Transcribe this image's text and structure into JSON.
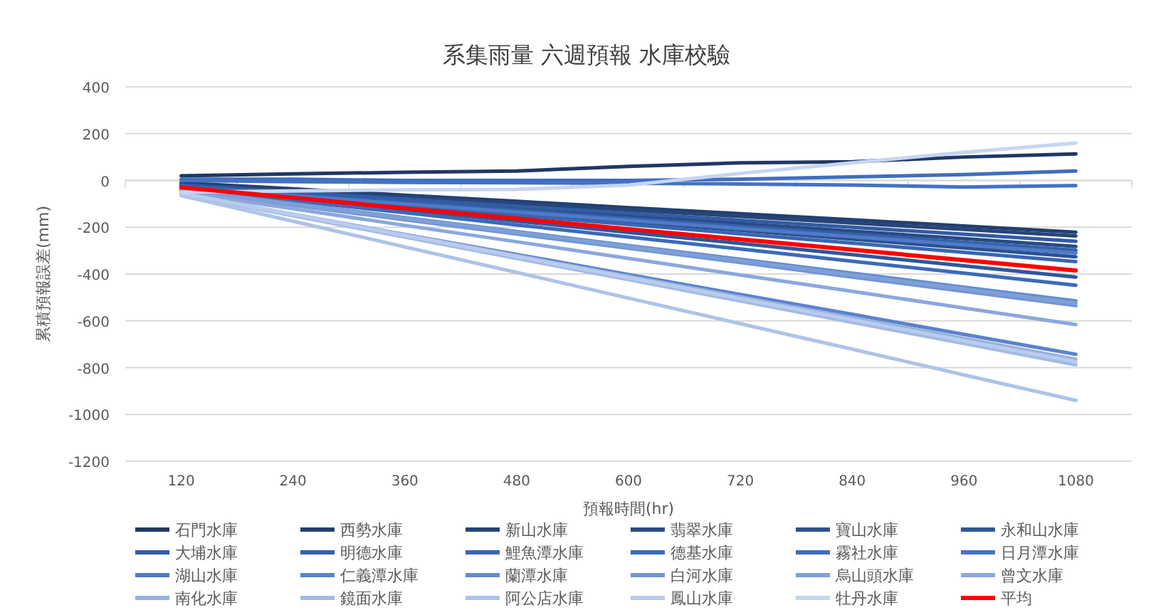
{
  "chart_data": {
    "type": "line",
    "title": "系集雨量 六週預報 水庫校驗",
    "xlabel": "預報時間(hr)",
    "ylabel": "累積預報誤差(mm)",
    "categories": [
      "120",
      "240",
      "360",
      "480",
      "600",
      "720",
      "840",
      "960",
      "1080"
    ],
    "ylim": [
      -1200,
      400
    ],
    "yticks": [
      -1200,
      -1000,
      -800,
      -600,
      -400,
      -200,
      0,
      200,
      400
    ],
    "grid": "y",
    "legend": "bottom",
    "series": [
      {
        "name": "石門水庫",
        "color": "#203864",
        "values": [
          20,
          28,
          35,
          40,
          60,
          75,
          80,
          100,
          113
        ]
      },
      {
        "name": "西勢水庫",
        "color": "#233f70",
        "values": [
          -10,
          -36,
          -63,
          -89,
          -116,
          -142,
          -168,
          -195,
          -221
        ]
      },
      {
        "name": "新山水庫",
        "color": "#26457a",
        "values": [
          -15,
          -43,
          -71,
          -98,
          -126,
          -154,
          -182,
          -209,
          -237
        ]
      },
      {
        "name": "翡翠水庫",
        "color": "#294b85",
        "values": [
          -20,
          -53,
          -86,
          -118,
          -151,
          -184,
          -217,
          -249,
          -282
        ]
      },
      {
        "name": "寶山水庫",
        "color": "#2c518f",
        "values": [
          -25,
          -63,
          -100,
          -138,
          -176,
          -213,
          -251,
          -288,
          -326
        ]
      },
      {
        "name": "永和山水庫",
        "color": "#2f5799",
        "values": [
          -30,
          -78,
          -126,
          -174,
          -222,
          -269,
          -317,
          -365,
          -413
        ]
      },
      {
        "name": "大埔水庫",
        "color": "#325ca2",
        "values": [
          -20,
          -50,
          -80,
          -110,
          -140,
          -170,
          -200,
          -230,
          -260
        ]
      },
      {
        "name": "明德水庫",
        "color": "#3561ab",
        "values": [
          -25,
          -59,
          -93,
          -127,
          -162,
          -196,
          -230,
          -264,
          -298
        ]
      },
      {
        "name": "鯉魚潭水庫",
        "color": "#3866b3",
        "values": [
          -30,
          -70,
          -109,
          -149,
          -188,
          -228,
          -268,
          -307,
          -347
        ]
      },
      {
        "name": "德基水庫",
        "color": "#3b6aba",
        "values": [
          -35,
          -87,
          -138,
          -190,
          -242,
          -293,
          -345,
          -396,
          -448
        ]
      },
      {
        "name": "霧社水庫",
        "color": "#3f6ebf",
        "values": [
          5,
          5,
          0,
          0,
          0,
          5,
          15,
          25,
          40
        ]
      },
      {
        "name": "日月潭水庫",
        "color": "#4472c4",
        "values": [
          0,
          -5,
          -8,
          -10,
          -12,
          -15,
          -20,
          -28,
          -22
        ]
      },
      {
        "name": "湖山水庫",
        "color": "#4f7ac8",
        "values": [
          -30,
          -65,
          -100,
          -135,
          -170,
          -205,
          -240,
          -275,
          -310
        ]
      },
      {
        "name": "仁義潭水庫",
        "color": "#5a83cc",
        "values": [
          -60,
          -145,
          -231,
          -316,
          -402,
          -487,
          -572,
          -658,
          -743
        ]
      },
      {
        "name": "蘭潭水庫",
        "color": "#668cd0",
        "values": [
          -40,
          -99,
          -159,
          -218,
          -278,
          -337,
          -396,
          -456,
          -515
        ]
      },
      {
        "name": "白河水庫",
        "color": "#7295d4",
        "values": [
          -45,
          -106,
          -168,
          -229,
          -290,
          -351,
          -413,
          -474,
          -535
        ]
      },
      {
        "name": "烏山頭水庫",
        "color": "#7e9fd8",
        "values": [
          -40,
          -101,
          -161,
          -222,
          -283,
          -343,
          -404,
          -464,
          -525
        ]
      },
      {
        "name": "曾文水庫",
        "color": "#8aa8dc",
        "values": [
          -50,
          -121,
          -192,
          -262,
          -333,
          -404,
          -474,
          -545,
          -616
        ]
      },
      {
        "name": "南化水庫",
        "color": "#96b1e0",
        "values": [
          -55,
          -144,
          -232,
          -321,
          -410,
          -498,
          -587,
          -675,
          -764
        ]
      },
      {
        "name": "鏡面水庫",
        "color": "#a2bae4",
        "values": [
          -60,
          -151,
          -242,
          -333,
          -424,
          -515,
          -606,
          -697,
          -788
        ]
      },
      {
        "name": "阿公店水庫",
        "color": "#aec3e8",
        "values": [
          -65,
          -174,
          -284,
          -393,
          -503,
          -612,
          -721,
          -831,
          -940
        ]
      },
      {
        "name": "鳳山水庫",
        "color": "#bacced",
        "values": [
          -55,
          -145,
          -235,
          -325,
          -415,
          -505,
          -595,
          -685,
          -775
        ]
      },
      {
        "name": "牡丹水庫",
        "color": "#c6d5f1",
        "values": [
          -50,
          -45,
          -40,
          -38,
          -20,
          30,
          75,
          120,
          160
        ]
      },
      {
        "name": "平均",
        "color": "#ff0000",
        "values": [
          -30,
          -74,
          -119,
          -163,
          -208,
          -252,
          -296,
          -341,
          -385
        ]
      }
    ]
  }
}
